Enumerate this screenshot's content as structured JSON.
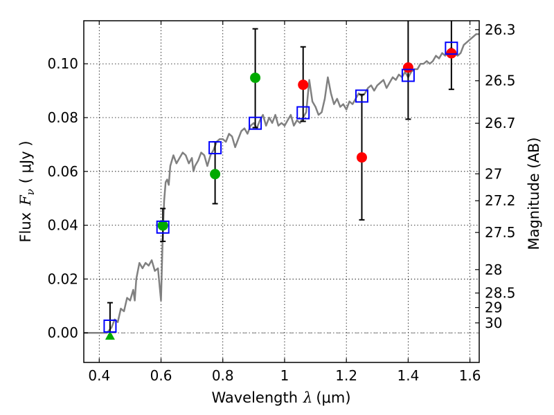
{
  "chart_data": {
    "type": "scatter",
    "xlabel": "Wavelength",
    "xlabel_symbol": "λ",
    "xlabel_unit": "(μm)",
    "ylabel": "Flux",
    "ylabel_symbol": "F",
    "ylabel_symbol_sub": "ν",
    "ylabel_unit": "( μJy )",
    "y2label": "Magnitude (AB)",
    "xlim": [
      0.35,
      1.63
    ],
    "ylim": [
      -0.011,
      0.116
    ],
    "grid": true,
    "x_ticks": [
      0.4,
      0.6,
      0.8,
      1.0,
      1.2,
      1.4,
      1.6
    ],
    "x_tick_labels": [
      "0.4",
      "0.6",
      "0.8",
      "1",
      "1.2",
      "1.4",
      "1.6"
    ],
    "y_ticks": [
      0.0,
      0.02,
      0.04,
      0.06,
      0.08,
      0.1
    ],
    "y_tick_labels": [
      "0.00",
      "0.02",
      "0.04",
      "0.06",
      "0.08",
      "0.10"
    ],
    "y2_ticks": [
      {
        "label": "26.3",
        "flux": 0.1127
      },
      {
        "label": "26.5",
        "flux": 0.0937
      },
      {
        "label": "26.7",
        "flux": 0.0779
      },
      {
        "label": "27",
        "flux": 0.0591
      },
      {
        "label": "27.2",
        "flux": 0.0491
      },
      {
        "label": "27.5",
        "flux": 0.0373
      },
      {
        "label": "28",
        "flux": 0.0235
      },
      {
        "label": "28.5",
        "flux": 0.0148
      },
      {
        "label": "29",
        "flux": 0.0094
      },
      {
        "label": "30",
        "flux": 0.0037
      }
    ],
    "model_spectrum": {
      "color": "#808080",
      "points": [
        [
          0.35,
          0.0
        ],
        [
          0.4,
          0.0
        ],
        [
          0.425,
          0.0
        ],
        [
          0.44,
          0.002
        ],
        [
          0.45,
          0.005
        ],
        [
          0.46,
          0.004
        ],
        [
          0.47,
          0.009
        ],
        [
          0.48,
          0.008
        ],
        [
          0.49,
          0.013
        ],
        [
          0.5,
          0.012
        ],
        [
          0.51,
          0.016
        ],
        [
          0.515,
          0.012
        ],
        [
          0.52,
          0.02
        ],
        [
          0.53,
          0.026
        ],
        [
          0.54,
          0.024
        ],
        [
          0.55,
          0.026
        ],
        [
          0.56,
          0.025
        ],
        [
          0.57,
          0.027
        ],
        [
          0.58,
          0.023
        ],
        [
          0.59,
          0.024
        ],
        [
          0.595,
          0.018
        ],
        [
          0.6,
          0.012
        ],
        [
          0.605,
          0.034
        ],
        [
          0.61,
          0.049
        ],
        [
          0.615,
          0.056
        ],
        [
          0.62,
          0.057
        ],
        [
          0.625,
          0.055
        ],
        [
          0.63,
          0.062
        ],
        [
          0.64,
          0.066
        ],
        [
          0.65,
          0.063
        ],
        [
          0.66,
          0.065
        ],
        [
          0.67,
          0.067
        ],
        [
          0.68,
          0.066
        ],
        [
          0.69,
          0.063
        ],
        [
          0.7,
          0.065
        ],
        [
          0.705,
          0.06
        ],
        [
          0.71,
          0.062
        ],
        [
          0.72,
          0.064
        ],
        [
          0.73,
          0.067
        ],
        [
          0.74,
          0.066
        ],
        [
          0.75,
          0.062
        ],
        [
          0.76,
          0.066
        ],
        [
          0.77,
          0.068
        ],
        [
          0.78,
          0.071
        ],
        [
          0.79,
          0.072
        ],
        [
          0.8,
          0.072
        ],
        [
          0.81,
          0.071
        ],
        [
          0.82,
          0.074
        ],
        [
          0.83,
          0.073
        ],
        [
          0.84,
          0.069
        ],
        [
          0.85,
          0.072
        ],
        [
          0.86,
          0.075
        ],
        [
          0.87,
          0.076
        ],
        [
          0.88,
          0.074
        ],
        [
          0.89,
          0.077
        ],
        [
          0.9,
          0.078
        ],
        [
          0.91,
          0.076
        ],
        [
          0.92,
          0.079
        ],
        [
          0.93,
          0.081
        ],
        [
          0.94,
          0.077
        ],
        [
          0.95,
          0.08
        ],
        [
          0.96,
          0.078
        ],
        [
          0.97,
          0.081
        ],
        [
          0.98,
          0.077
        ],
        [
          0.99,
          0.078
        ],
        [
          1.0,
          0.077
        ],
        [
          1.01,
          0.079
        ],
        [
          1.02,
          0.081
        ],
        [
          1.03,
          0.077
        ],
        [
          1.04,
          0.079
        ],
        [
          1.05,
          0.078
        ],
        [
          1.06,
          0.08
        ],
        [
          1.07,
          0.082
        ],
        [
          1.08,
          0.094
        ],
        [
          1.09,
          0.086
        ],
        [
          1.1,
          0.084
        ],
        [
          1.11,
          0.081
        ],
        [
          1.12,
          0.082
        ],
        [
          1.13,
          0.087
        ],
        [
          1.14,
          0.095
        ],
        [
          1.15,
          0.089
        ],
        [
          1.16,
          0.085
        ],
        [
          1.17,
          0.087
        ],
        [
          1.18,
          0.084
        ],
        [
          1.19,
          0.085
        ],
        [
          1.2,
          0.083
        ],
        [
          1.21,
          0.086
        ],
        [
          1.22,
          0.085
        ],
        [
          1.23,
          0.087
        ],
        [
          1.24,
          0.089
        ],
        [
          1.25,
          0.088
        ],
        [
          1.26,
          0.089
        ],
        [
          1.27,
          0.091
        ],
        [
          1.28,
          0.092
        ],
        [
          1.29,
          0.09
        ],
        [
          1.3,
          0.092
        ],
        [
          1.31,
          0.093
        ],
        [
          1.32,
          0.094
        ],
        [
          1.33,
          0.091
        ],
        [
          1.34,
          0.093
        ],
        [
          1.35,
          0.095
        ],
        [
          1.36,
          0.094
        ],
        [
          1.37,
          0.096
        ],
        [
          1.38,
          0.095
        ],
        [
          1.39,
          0.097
        ],
        [
          1.4,
          0.095
        ],
        [
          1.41,
          0.097
        ],
        [
          1.42,
          0.098
        ],
        [
          1.43,
          0.098
        ],
        [
          1.44,
          0.1
        ],
        [
          1.45,
          0.1
        ],
        [
          1.46,
          0.101
        ],
        [
          1.47,
          0.1
        ],
        [
          1.48,
          0.101
        ],
        [
          1.49,
          0.103
        ],
        [
          1.5,
          0.102
        ],
        [
          1.51,
          0.104
        ],
        [
          1.52,
          0.103
        ],
        [
          1.53,
          0.105
        ],
        [
          1.54,
          0.106
        ],
        [
          1.55,
          0.104
        ],
        [
          1.56,
          0.103
        ],
        [
          1.57,
          0.104
        ],
        [
          1.58,
          0.107
        ],
        [
          1.59,
          0.108
        ],
        [
          1.6,
          0.109
        ],
        [
          1.61,
          0.11
        ],
        [
          1.62,
          0.111
        ],
        [
          1.63,
          0.111
        ]
      ]
    },
    "model_photometry": {
      "color": "#0000ff",
      "points": [
        [
          0.435,
          0.0025
        ],
        [
          0.606,
          0.0393
        ],
        [
          0.775,
          0.0688
        ],
        [
          0.905,
          0.0779
        ],
        [
          1.06,
          0.0818
        ],
        [
          1.25,
          0.088
        ],
        [
          1.4,
          0.0957
        ],
        [
          1.54,
          0.1058
        ]
      ]
    },
    "observed_hst_acs": {
      "color": "#00aa00",
      "points": [
        {
          "x": 0.435,
          "y": -0.001,
          "shape": "triangle",
          "err_hi": 0.0112,
          "err_lo": null
        },
        {
          "x": 0.606,
          "y": 0.0399,
          "shape": "circle",
          "err_hi": 0.0462,
          "err_lo": 0.034
        },
        {
          "x": 0.775,
          "y": 0.059,
          "shape": "circle",
          "err_hi": 0.071,
          "err_lo": 0.048
        },
        {
          "x": 0.905,
          "y": 0.0948,
          "shape": "circle",
          "err_hi": 0.113,
          "err_lo": 0.0763
        }
      ]
    },
    "observed_hst_wfc3": {
      "color": "#ff0000",
      "points": [
        {
          "x": 1.06,
          "y": 0.0922,
          "err_hi": 0.1063,
          "err_lo": 0.0786
        },
        {
          "x": 1.25,
          "y": 0.0652,
          "err_hi": 0.0886,
          "err_lo": 0.042
        },
        {
          "x": 1.4,
          "y": 0.0986,
          "err_hi": 0.118,
          "err_lo": 0.0794
        },
        {
          "x": 1.54,
          "y": 0.1039,
          "err_hi": 0.118,
          "err_lo": 0.0905
        }
      ]
    }
  }
}
